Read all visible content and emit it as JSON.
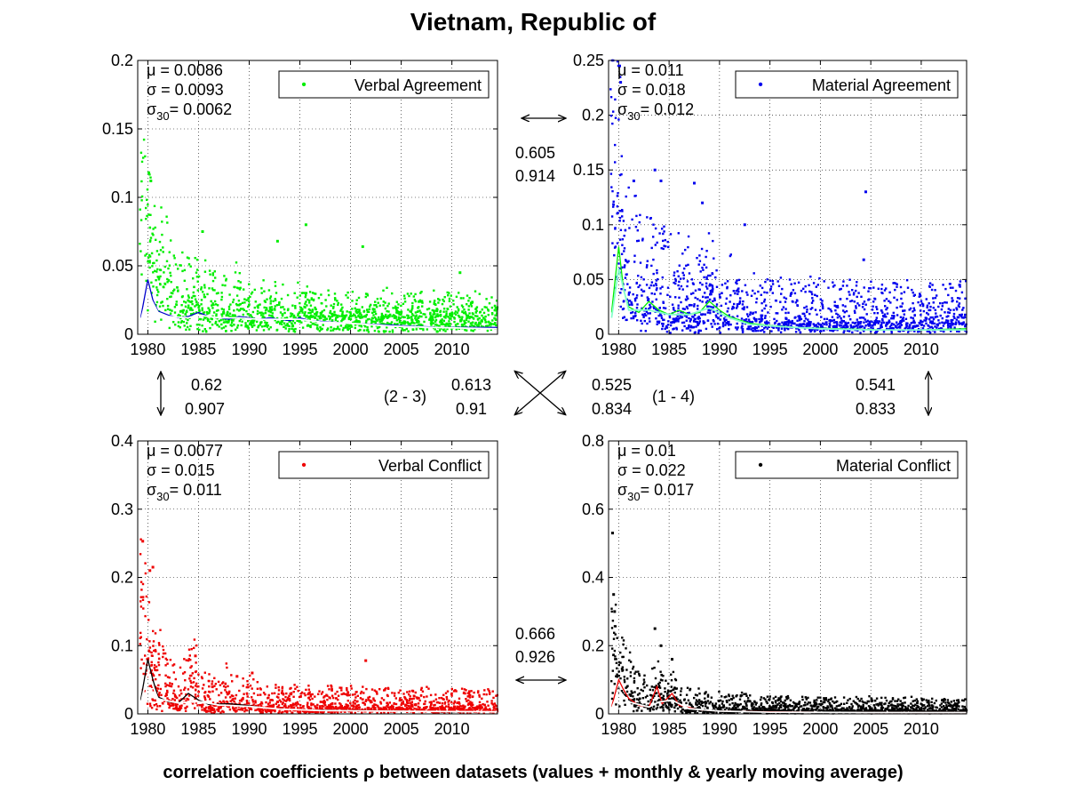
{
  "title": "Vietnam, Republic of",
  "footer": "correlation coefficients ρ between datasets (values + monthly & yearly moving average)",
  "correlations": {
    "top": {
      "a": "0.605",
      "b": "0.914"
    },
    "left": {
      "a": "0.62",
      "b": "0.907"
    },
    "right": {
      "a": "0.541",
      "b": "0.833"
    },
    "bottom": {
      "a": "0.666",
      "b": "0.926"
    },
    "diag_23": {
      "label": "(2 - 3)",
      "a": "0.613",
      "b": "0.91"
    },
    "diag_14": {
      "label": "(1 - 4)",
      "a": "0.525",
      "b": "0.834"
    }
  },
  "chart_data": [
    {
      "type": "scatter",
      "id": "verbal-agreement",
      "legend": "Verbal Agreement",
      "legend_position": "top-right",
      "color": "#00ee00",
      "ma_color": "#0000cc",
      "ma2_color": "#ffffff",
      "stats": {
        "mu": "= 0.0086",
        "sigma": "= 0.0093",
        "sigma30": "= 0.0062"
      },
      "x_ticks": [
        "1980",
        "1985",
        "1990",
        "1995",
        "2000",
        "2005",
        "2010"
      ],
      "y_ticks": [
        "0",
        "0.05",
        "0.1",
        "0.15",
        "0.2"
      ],
      "xlim": [
        1979,
        2014.5
      ],
      "ylim": [
        0,
        0.2
      ],
      "grid": true,
      "base": 0.008,
      "noise": 0.01,
      "early_peak": 0.1,
      "decay": 1.2,
      "bumps": [
        [
          1984.5,
          0.006
        ],
        [
          1989,
          0.005
        ],
        [
          1992,
          0.004
        ],
        [
          1995.5,
          0.005
        ]
      ],
      "outliers": [
        [
          1985.4,
          0.075
        ],
        [
          1992.8,
          0.068
        ],
        [
          1995.6,
          0.08
        ],
        [
          2001.2,
          0.064
        ],
        [
          2010.8,
          0.045
        ],
        [
          1980.1,
          0.118
        ],
        [
          1980.3,
          0.112
        ]
      ],
      "ma": [
        [
          1979.3,
          0.012
        ],
        [
          1980,
          0.04
        ],
        [
          1980.5,
          0.025
        ],
        [
          1981,
          0.017
        ],
        [
          1982,
          0.014
        ],
        [
          1983,
          0.012
        ],
        [
          1984,
          0.013
        ],
        [
          1985,
          0.016
        ],
        [
          1986,
          0.013
        ],
        [
          1987,
          0.012
        ],
        [
          1988,
          0.011
        ],
        [
          1989,
          0.013
        ],
        [
          1990,
          0.012
        ],
        [
          1991,
          0.011
        ],
        [
          1992,
          0.012
        ],
        [
          1993,
          0.011
        ],
        [
          1994,
          0.01
        ],
        [
          1995,
          0.012
        ],
        [
          1996,
          0.01
        ],
        [
          1998,
          0.009
        ],
        [
          2000,
          0.008
        ],
        [
          2003,
          0.007
        ],
        [
          2006,
          0.006
        ],
        [
          2009,
          0.005
        ],
        [
          2012,
          0.005
        ],
        [
          2014.5,
          0.005
        ]
      ],
      "ma2": [
        [
          1979.3,
          0.01
        ],
        [
          1980,
          0.03
        ],
        [
          1981,
          0.016
        ],
        [
          1982,
          0.013
        ],
        [
          1984,
          0.012
        ],
        [
          1985,
          0.014
        ],
        [
          1987,
          0.012
        ],
        [
          1989,
          0.012
        ],
        [
          1991,
          0.011
        ],
        [
          1993,
          0.011
        ],
        [
          1995,
          0.011
        ],
        [
          1997,
          0.009
        ],
        [
          2000,
          0.008
        ],
        [
          2004,
          0.006
        ],
        [
          2008,
          0.005
        ],
        [
          2014.5,
          0.004
        ]
      ]
    },
    {
      "type": "scatter",
      "id": "material-agreement",
      "legend": "Material Agreement",
      "legend_position": "top-right",
      "color": "#0000ee",
      "ma_color": "#00ee00",
      "ma2_color": "#88ffcc",
      "stats": {
        "mu": "= 0.011",
        "sigma": "= 0.018",
        "sigma30": "= 0.012"
      },
      "x_ticks": [
        "1980",
        "1985",
        "1990",
        "1995",
        "2000",
        "2005",
        "2010"
      ],
      "y_ticks": [
        "0",
        "0.05",
        "0.1",
        "0.15",
        "0.2",
        "0.25"
      ],
      "xlim": [
        1979,
        2014.5
      ],
      "ylim": [
        0,
        0.25
      ],
      "grid": true,
      "base": 0.006,
      "noise": 0.02,
      "early_peak": 0.2,
      "decay": 0.9,
      "bumps": [
        [
          1983.5,
          0.02
        ],
        [
          1986.5,
          0.01
        ],
        [
          1989,
          0.025
        ],
        [
          1991.5,
          0.01
        ]
      ],
      "outliers": [
        [
          1980.1,
          0.245
        ],
        [
          1980.2,
          0.23
        ],
        [
          1984.2,
          0.14
        ],
        [
          1987.5,
          0.138
        ],
        [
          1988.3,
          0.12
        ],
        [
          1992.5,
          0.1
        ],
        [
          2004.3,
          0.068
        ],
        [
          2004.5,
          0.13
        ],
        [
          2013.8,
          0.045
        ],
        [
          1983.6,
          0.15
        ],
        [
          1981.5,
          0.14
        ]
      ],
      "ma": [
        [
          1979.3,
          0.02
        ],
        [
          1980,
          0.08
        ],
        [
          1980.5,
          0.04
        ],
        [
          1981,
          0.025
        ],
        [
          1982,
          0.02
        ],
        [
          1983,
          0.03
        ],
        [
          1984,
          0.022
        ],
        [
          1985,
          0.018
        ],
        [
          1986,
          0.022
        ],
        [
          1987,
          0.018
        ],
        [
          1988,
          0.02
        ],
        [
          1989,
          0.03
        ],
        [
          1990,
          0.022
        ],
        [
          1991,
          0.016
        ],
        [
          1992,
          0.013
        ],
        [
          1993,
          0.01
        ],
        [
          1995,
          0.008
        ],
        [
          1998,
          0.006
        ],
        [
          2002,
          0.005
        ],
        [
          2006,
          0.004
        ],
        [
          2010,
          0.004
        ],
        [
          2014.5,
          0.005
        ]
      ],
      "ma2": [
        [
          1979.3,
          0.015
        ],
        [
          1980,
          0.06
        ],
        [
          1981,
          0.022
        ],
        [
          1983,
          0.022
        ],
        [
          1985,
          0.018
        ],
        [
          1987,
          0.018
        ],
        [
          1989,
          0.024
        ],
        [
          1991,
          0.015
        ],
        [
          1993,
          0.009
        ],
        [
          1996,
          0.007
        ],
        [
          2000,
          0.005
        ],
        [
          2005,
          0.004
        ],
        [
          2014.5,
          0.004
        ]
      ]
    },
    {
      "type": "scatter",
      "id": "verbal-conflict",
      "legend": "Verbal Conflict",
      "legend_position": "top-right",
      "color": "#ee0000",
      "ma_color": "#000000",
      "ma2_color": "#ffffff",
      "stats": {
        "mu": "= 0.0077",
        "sigma": "= 0.015",
        "sigma30": "= 0.011"
      },
      "x_ticks": [
        "1980",
        "1985",
        "1990",
        "1995",
        "2000",
        "2005",
        "2010"
      ],
      "y_ticks": [
        "0",
        "0.1",
        "0.2",
        "0.3",
        "0.4"
      ],
      "xlim": [
        1979,
        2014.5
      ],
      "ylim": [
        0,
        0.4
      ],
      "grid": true,
      "base": 0.005,
      "noise": 0.015,
      "early_peak": 0.15,
      "decay": 1.0,
      "bumps": [
        [
          1984.5,
          0.03
        ],
        [
          1988,
          0.01
        ],
        [
          1990,
          0.008
        ]
      ],
      "outliers": [
        [
          1979.5,
          0.253
        ],
        [
          1980.2,
          0.21
        ],
        [
          1980.5,
          0.215
        ],
        [
          1984.7,
          0.085
        ],
        [
          2001.5,
          0.078
        ],
        [
          1990.3,
          0.06
        ],
        [
          1988.8,
          0.055
        ]
      ],
      "ma": [
        [
          1979.3,
          0.02
        ],
        [
          1980,
          0.08
        ],
        [
          1980.5,
          0.05
        ],
        [
          1981,
          0.025
        ],
        [
          1982,
          0.018
        ],
        [
          1983,
          0.016
        ],
        [
          1984,
          0.03
        ],
        [
          1985,
          0.02
        ],
        [
          1986,
          0.014
        ],
        [
          1988,
          0.015
        ],
        [
          1990,
          0.012
        ],
        [
          1992,
          0.008
        ],
        [
          1995,
          0.006
        ],
        [
          2000,
          0.005
        ],
        [
          2005,
          0.004
        ],
        [
          2010,
          0.003
        ],
        [
          2014.5,
          0.003
        ]
      ],
      "ma2": [
        [
          1979.3,
          0.015
        ],
        [
          1980,
          0.06
        ],
        [
          1981,
          0.022
        ],
        [
          1983,
          0.016
        ],
        [
          1985,
          0.018
        ],
        [
          1987,
          0.013
        ],
        [
          1990,
          0.011
        ],
        [
          1993,
          0.007
        ],
        [
          1997,
          0.005
        ],
        [
          2003,
          0.004
        ],
        [
          2014.5,
          0.003
        ]
      ]
    },
    {
      "type": "scatter",
      "id": "material-conflict",
      "legend": "Material Conflict",
      "legend_position": "top-right",
      "color": "#000000",
      "ma_color": "#ee0000",
      "ma2_color": "#ffffff",
      "stats": {
        "mu": "= 0.01",
        "sigma": "= 0.022",
        "sigma30": "= 0.017"
      },
      "x_ticks": [
        "1980",
        "1985",
        "1990",
        "1995",
        "2000",
        "2005",
        "2010"
      ],
      "y_ticks": [
        "0",
        "0.2",
        "0.4",
        "0.6",
        "0.8"
      ],
      "xlim": [
        1979,
        2014.5
      ],
      "ylim": [
        0,
        0.8
      ],
      "grid": true,
      "base": 0.006,
      "noise": 0.02,
      "early_peak": 0.25,
      "decay": 1.0,
      "bumps": [
        [
          1983.8,
          0.04
        ],
        [
          1985.3,
          0.03
        ]
      ],
      "outliers": [
        [
          1979.4,
          0.53
        ],
        [
          1979.5,
          0.35
        ],
        [
          1979.6,
          0.3
        ],
        [
          1983.6,
          0.25
        ],
        [
          1985.3,
          0.16
        ],
        [
          1984.2,
          0.2
        ]
      ],
      "ma": [
        [
          1979.3,
          0.02
        ],
        [
          1980,
          0.1
        ],
        [
          1980.5,
          0.07
        ],
        [
          1981,
          0.045
        ],
        [
          1982,
          0.025
        ],
        [
          1983,
          0.02
        ],
        [
          1983.8,
          0.08
        ],
        [
          1984.3,
          0.03
        ],
        [
          1985.3,
          0.06
        ],
        [
          1986,
          0.025
        ],
        [
          1988,
          0.012
        ],
        [
          1990,
          0.008
        ],
        [
          1995,
          0.006
        ],
        [
          2000,
          0.005
        ],
        [
          2005,
          0.004
        ],
        [
          2010,
          0.004
        ],
        [
          2014.5,
          0.004
        ]
      ],
      "ma2": [
        [
          1979.3,
          0.015
        ],
        [
          1980,
          0.07
        ],
        [
          1981,
          0.035
        ],
        [
          1983,
          0.02
        ],
        [
          1984,
          0.035
        ],
        [
          1985.3,
          0.04
        ],
        [
          1987,
          0.015
        ],
        [
          1990,
          0.008
        ],
        [
          1995,
          0.005
        ],
        [
          2005,
          0.004
        ],
        [
          2014.5,
          0.004
        ]
      ]
    }
  ]
}
